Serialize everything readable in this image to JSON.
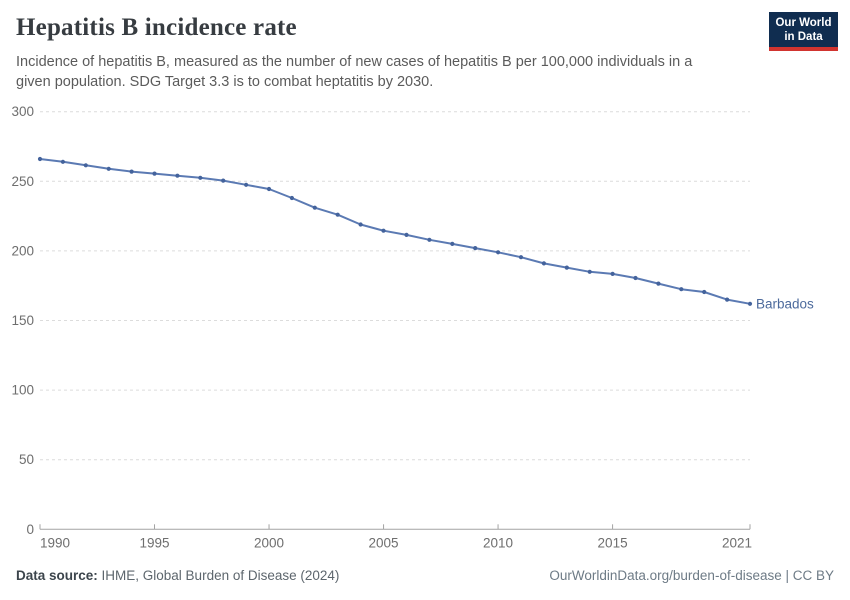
{
  "header": {
    "title": "Hepatitis B incidence rate",
    "subtitle": "Incidence of hepatitis B, measured as the number of new cases of hepatitis B per 100,000 individuals in a given population. SDG Target 3.3 is to combat heptatitis by 2030.",
    "logo": {
      "line1": "Our World",
      "line2": "in Data",
      "bg_color": "#102d50",
      "accent_color": "#d1342f"
    }
  },
  "chart_data": {
    "type": "line",
    "title": "Hepatitis B incidence rate",
    "x": [
      1990,
      1991,
      1992,
      1993,
      1994,
      1995,
      1996,
      1997,
      1998,
      1999,
      2000,
      2001,
      2002,
      2003,
      2004,
      2005,
      2006,
      2007,
      2008,
      2009,
      2010,
      2011,
      2012,
      2013,
      2014,
      2015,
      2016,
      2017,
      2018,
      2019,
      2020,
      2021
    ],
    "series": [
      {
        "name": "Barbados",
        "values": [
          266,
          264,
          261.5,
          259,
          257,
          255.5,
          254,
          252.5,
          250.5,
          247.5,
          244.5,
          238,
          231,
          226,
          219,
          214.5,
          211.5,
          208,
          205,
          202,
          199,
          195.5,
          191,
          188,
          185,
          183.5,
          180.5,
          176.5,
          172.5,
          170.5,
          165,
          162
        ]
      }
    ],
    "xlabel": "",
    "ylabel": "",
    "ylim": [
      0,
      300
    ],
    "yticks": [
      0,
      50,
      100,
      150,
      200,
      250,
      300
    ],
    "xticks": [
      1990,
      1995,
      2000,
      2005,
      2010,
      2015,
      2021
    ],
    "grid": "horizontal-dashed",
    "legend_position": "end-of-line",
    "entity_label": "Barbados",
    "colors": {
      "line": "#5b7ab3",
      "marker": "#44639c",
      "entity_label": "#4c6a9c",
      "gridline": "#dcdcdc",
      "axis_line": "#a3a3a3",
      "tick_text": "#6e6e6e"
    }
  },
  "footer": {
    "datasource_label": "Data source:",
    "datasource_value": " IHME, Global Burden of Disease (2024)",
    "credit": "OurWorldinData.org/burden-of-disease | CC BY"
  }
}
